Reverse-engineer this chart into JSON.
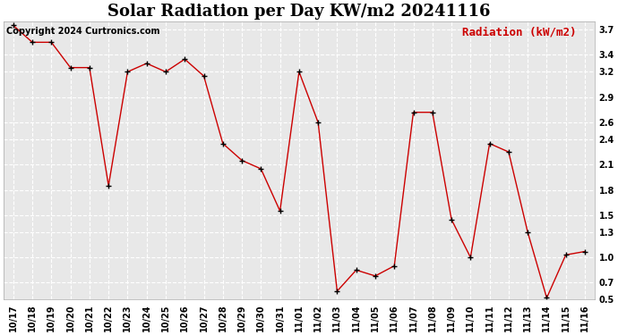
{
  "title": "Solar Radiation per Day KW/m2 20241116",
  "copyright": "Copyright 2024 Curtronics.com",
  "legend_label": "Radiation (kW/m2)",
  "dates": [
    "10/17",
    "10/18",
    "10/19",
    "10/20",
    "10/21",
    "10/22",
    "10/23",
    "10/24",
    "10/25",
    "10/26",
    "10/27",
    "10/28",
    "10/29",
    "10/30",
    "10/31",
    "11/01",
    "11/02",
    "11/03",
    "11/04",
    "11/05",
    "11/06",
    "11/07",
    "11/08",
    "11/09",
    "11/10",
    "11/11",
    "11/12",
    "11/13",
    "11/14",
    "11/15",
    "11/16"
  ],
  "values": [
    3.75,
    3.55,
    3.55,
    3.25,
    3.25,
    1.85,
    3.2,
    3.3,
    3.2,
    3.35,
    3.15,
    2.35,
    2.15,
    2.05,
    1.55,
    3.2,
    2.6,
    0.6,
    0.85,
    0.78,
    0.9,
    2.72,
    2.72,
    1.45,
    1.0,
    2.35,
    2.25,
    1.3,
    0.52,
    1.03,
    1.07
  ],
  "line_color": "#cc0000",
  "marker_color": "#000000",
  "background_color": "#ffffff",
  "plot_bg_color": "#e8e8e8",
  "grid_color": "#ffffff",
  "text_color": "#000000",
  "legend_color": "#cc0000",
  "title_color": "#000000",
  "ylim": [
    0.5,
    3.8
  ],
  "yticks": [
    0.5,
    0.7,
    1.0,
    1.3,
    1.5,
    1.8,
    2.1,
    2.4,
    2.6,
    2.9,
    3.2,
    3.4,
    3.7
  ],
  "title_fontsize": 13,
  "legend_fontsize": 9,
  "tick_fontsize": 7,
  "copyright_fontsize": 7
}
